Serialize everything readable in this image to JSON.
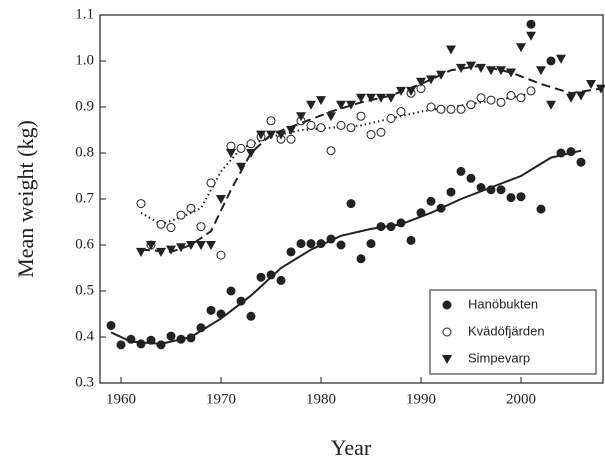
{
  "chart_data": {
    "type": "scatter",
    "xlabel": "Year",
    "ylabel": "Mean weight (kg)",
    "xlim": [
      1957.9,
      2008.2
    ],
    "xticks": [
      1960,
      1970,
      1980,
      1990,
      2000
    ],
    "ylim": [
      0.3,
      1.1
    ],
    "yticks": [
      0.3,
      0.4,
      0.5,
      0.6,
      0.7,
      0.8,
      0.9,
      {
        "value": 1,
        "label": "1.0"
      },
      1.1
    ],
    "legend": "lower right",
    "series": [
      {
        "name": "Hanöbukten",
        "marker": "filled-circle",
        "line": "solid",
        "color": "#222",
        "x": [
          1959,
          1960,
          1961,
          1962,
          1963,
          1964,
          1965,
          1966,
          1967,
          1968,
          1969,
          1970,
          1971,
          1972,
          1973,
          1974,
          1975,
          1976,
          1977,
          1978,
          1979,
          1980,
          1981,
          1982,
          1983,
          1984,
          1985,
          1986,
          1987,
          1988,
          1989,
          1990,
          1991,
          1992,
          1993,
          1994,
          1995,
          1996,
          1997,
          1998,
          1999,
          2000,
          2001,
          2002,
          2003,
          2004,
          2005,
          2006
        ],
        "values": [
          0.425,
          0.383,
          0.395,
          0.385,
          0.393,
          0.383,
          0.402,
          0.395,
          0.398,
          0.42,
          0.458,
          0.45,
          0.5,
          0.478,
          0.445,
          0.53,
          0.535,
          0.523,
          0.585,
          0.603,
          0.603,
          0.603,
          0.613,
          0.6,
          0.69,
          0.57,
          0.603,
          0.64,
          0.64,
          0.648,
          0.61,
          0.67,
          0.695,
          0.68,
          0.715,
          0.76,
          0.745,
          0.725,
          0.72,
          0.72,
          0.703,
          0.705,
          1.08,
          0.678,
          1.0,
          0.8,
          0.803,
          0.78
        ],
        "fit_x": [
          1959,
          1961,
          1964,
          1967,
          1970,
          1973,
          1976,
          1979,
          1982,
          1985,
          1988,
          1991,
          1994,
          1997,
          2000,
          2003,
          2006
        ],
        "fit": [
          0.41,
          0.39,
          0.385,
          0.4,
          0.44,
          0.49,
          0.55,
          0.59,
          0.62,
          0.635,
          0.645,
          0.67,
          0.7,
          0.725,
          0.75,
          0.79,
          0.805
        ]
      },
      {
        "name": "Kvädöfjärden",
        "marker": "open-circle",
        "line": "dotted",
        "color": "#222",
        "x": [
          1962,
          1963,
          1964,
          1965,
          1966,
          1967,
          1968,
          1969,
          1970,
          1971,
          1972,
          1973,
          1974,
          1975,
          1976,
          1977,
          1978,
          1979,
          1980,
          1981,
          1982,
          1983,
          1984,
          1985,
          1986,
          1987,
          1988,
          1989,
          1990,
          1991,
          1992,
          1993,
          1994,
          1995,
          1996,
          1997,
          1998,
          1999,
          2000,
          2001
        ],
        "values": [
          0.69,
          0.6,
          0.645,
          0.638,
          0.665,
          0.68,
          0.64,
          0.735,
          0.578,
          0.815,
          0.81,
          0.82,
          0.835,
          0.87,
          0.83,
          0.83,
          0.87,
          0.86,
          0.855,
          0.805,
          0.86,
          0.855,
          0.88,
          0.84,
          0.845,
          0.875,
          0.89,
          0.93,
          0.94,
          0.9,
          0.895,
          0.895,
          0.895,
          0.905,
          0.92,
          0.915,
          0.91,
          0.925,
          0.92,
          0.935
        ],
        "fit_x": [
          1962,
          1964,
          1966,
          1968,
          1970,
          1972,
          1975,
          1978,
          1981,
          1984,
          1987,
          1990,
          1993,
          1996,
          1999,
          2001
        ],
        "fit": [
          0.67,
          0.645,
          0.66,
          0.68,
          0.76,
          0.81,
          0.835,
          0.85,
          0.855,
          0.86,
          0.875,
          0.89,
          0.9,
          0.91,
          0.92,
          0.93
        ]
      },
      {
        "name": "Simpevarp",
        "marker": "triangle",
        "line": "dashed",
        "color": "#222",
        "x": [
          1962,
          1963,
          1964,
          1965,
          1966,
          1967,
          1968,
          1969,
          1970,
          1971,
          1972,
          1973,
          1974,
          1975,
          1976,
          1977,
          1978,
          1979,
          1980,
          1981,
          1982,
          1983,
          1984,
          1985,
          1986,
          1987,
          1988,
          1989,
          1990,
          1991,
          1992,
          1993,
          1994,
          1995,
          1996,
          1997,
          1998,
          1999,
          2000,
          2001,
          2002,
          2003,
          2004,
          2005,
          2006,
          2007,
          2008
        ],
        "values": [
          0.585,
          0.6,
          0.585,
          0.59,
          0.595,
          0.6,
          0.6,
          0.6,
          0.7,
          0.8,
          0.77,
          0.8,
          0.84,
          0.84,
          0.84,
          0.85,
          0.88,
          0.905,
          0.915,
          0.88,
          0.905,
          0.905,
          0.92,
          0.92,
          0.92,
          0.92,
          0.935,
          0.935,
          0.955,
          0.96,
          0.97,
          1.025,
          0.985,
          0.99,
          0.985,
          0.98,
          0.98,
          0.975,
          1.03,
          1.055,
          0.98,
          0.905,
          1.005,
          0.92,
          0.925,
          0.95,
          0.94
        ],
        "fit_x": [
          1962,
          1965,
          1967,
          1969,
          1971,
          1973,
          1975,
          1978,
          1981,
          1984,
          1987,
          1990,
          1993,
          1996,
          1999,
          2002,
          2005,
          2008
        ],
        "fit": [
          0.59,
          0.585,
          0.6,
          0.63,
          0.72,
          0.8,
          0.84,
          0.865,
          0.89,
          0.91,
          0.925,
          0.95,
          0.98,
          0.99,
          0.975,
          0.95,
          0.93,
          0.94
        ]
      }
    ]
  }
}
